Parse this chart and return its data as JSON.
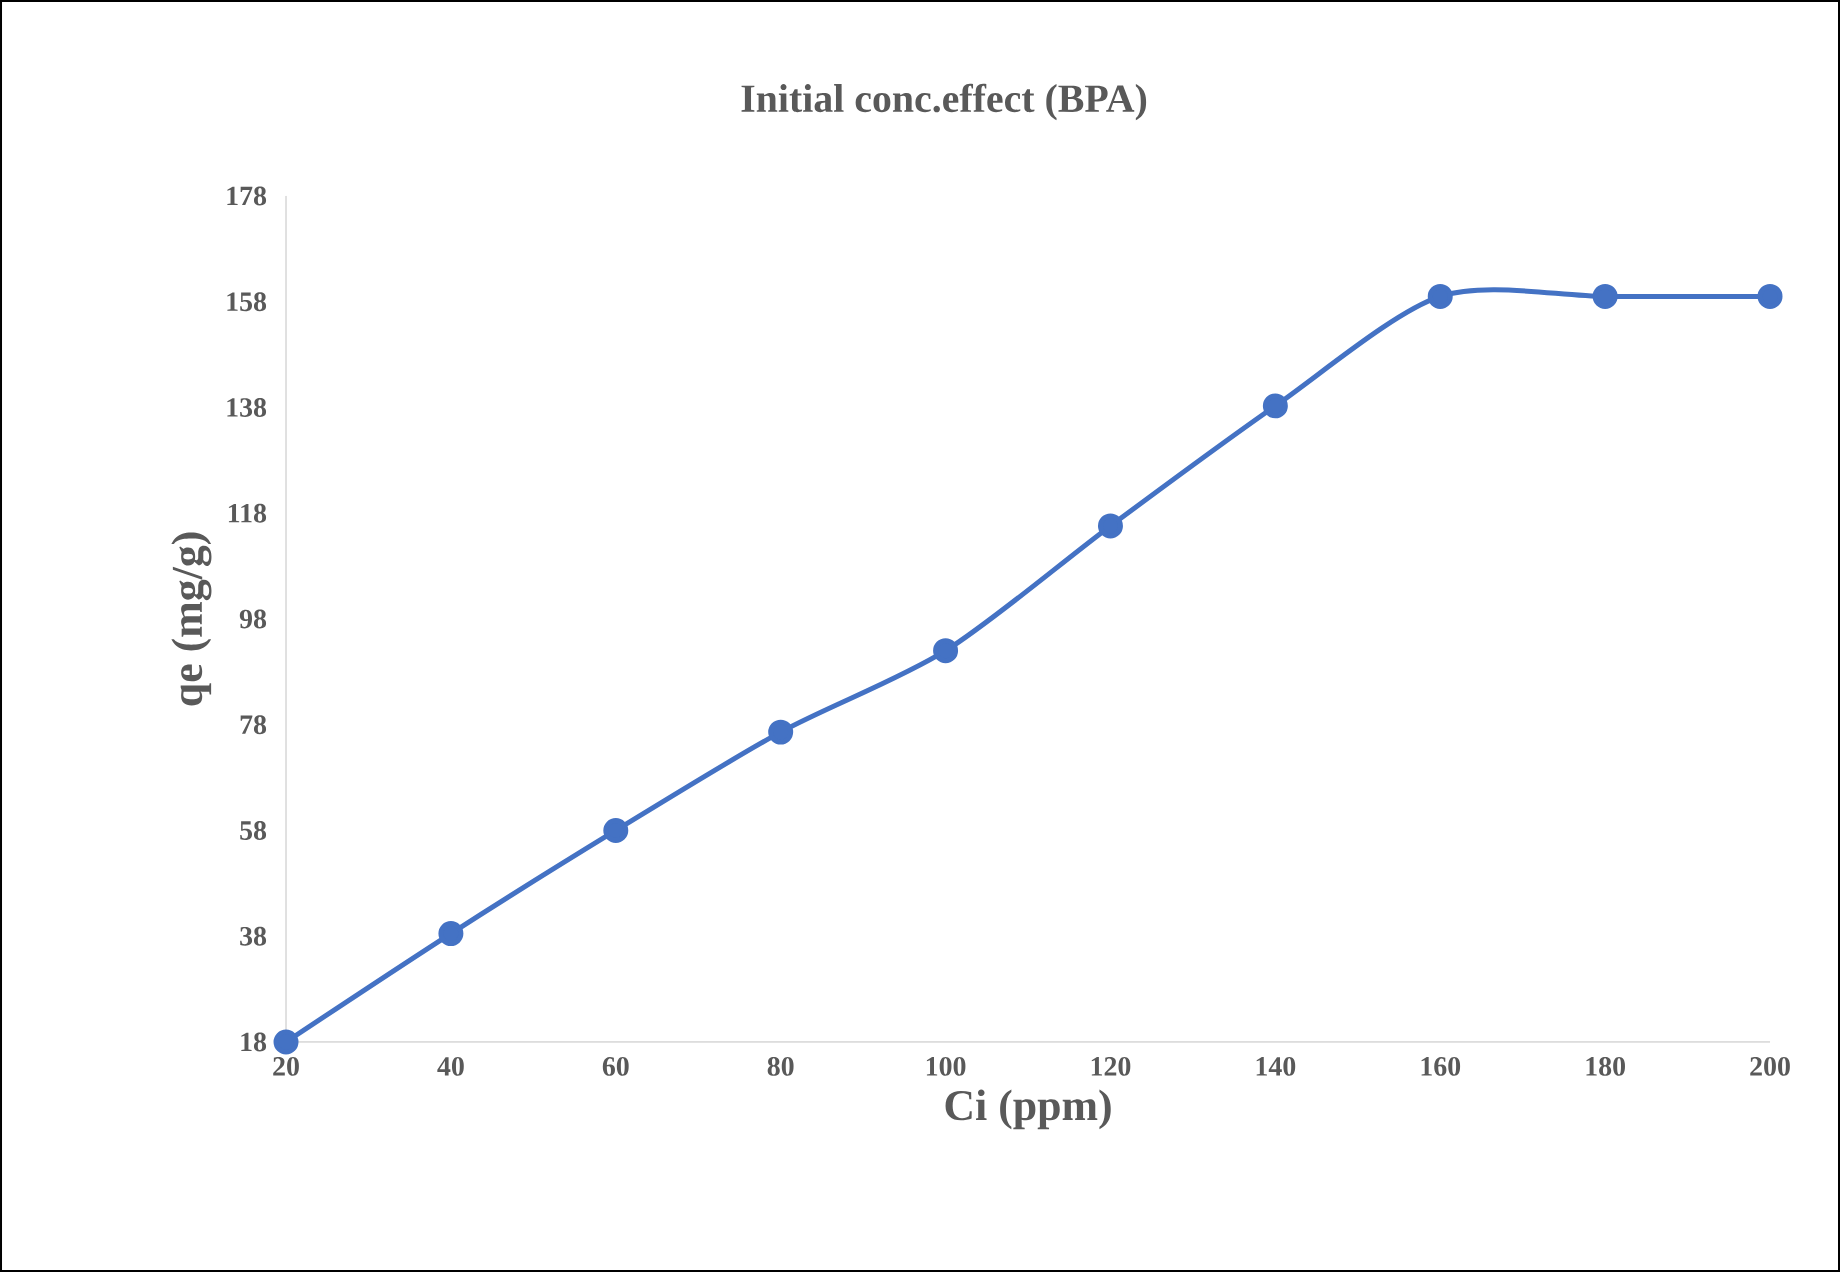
{
  "chart_data": {
    "type": "line",
    "title": "Initial conc.effect (BPA)",
    "xlabel": "Ci (ppm)",
    "ylabel": "qe (mg/g)",
    "x": [
      20,
      40,
      60,
      80,
      100,
      120,
      140,
      160,
      180,
      200
    ],
    "values": [
      18,
      38.5,
      58,
      76.6,
      92,
      115.6,
      138.3,
      159,
      159,
      159
    ],
    "color": "#4472c4",
    "marker": "circle",
    "xlim": [
      20,
      200
    ],
    "ylim": [
      18,
      178
    ],
    "xticks": [
      20,
      40,
      60,
      80,
      100,
      120,
      140,
      160,
      180,
      200
    ],
    "yticks": [
      18,
      38,
      58,
      78,
      98,
      118,
      138,
      158,
      178
    ]
  }
}
